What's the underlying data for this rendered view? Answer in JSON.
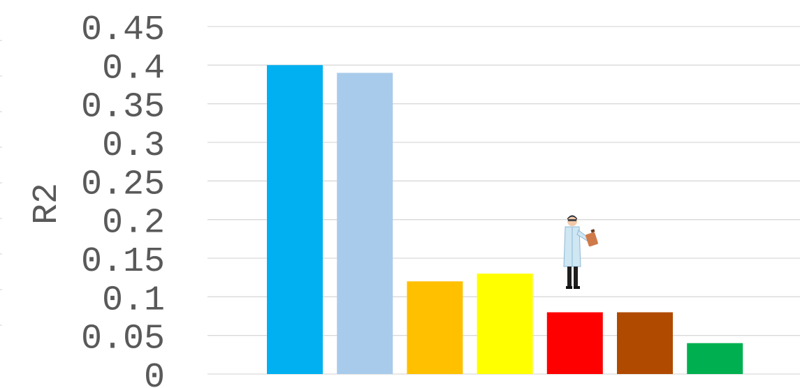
{
  "chart_data": {
    "type": "bar",
    "title": "",
    "xlabel": "",
    "ylabel": "R2",
    "ylim": [
      0,
      0.45
    ],
    "y_ticks": [
      "0",
      "0.05",
      "0.1",
      "0.15",
      "0.2",
      "0.25",
      "0.3",
      "0.35",
      "0.4",
      "0.45"
    ],
    "grid": true,
    "legend": "none",
    "categories": [
      "",
      "",
      "",
      "",
      "",
      "",
      ""
    ],
    "values": [
      0.4,
      0.39,
      0.12,
      0.13,
      0.08,
      0.08,
      0.04
    ],
    "colors": [
      "#00B0F0",
      "#A9CBEB",
      "#FFC000",
      "#FFFF00",
      "#FF0000",
      "#B04A00",
      "#00B050"
    ]
  },
  "illustration": {
    "icon": "scientist-with-clipboard-icon"
  }
}
